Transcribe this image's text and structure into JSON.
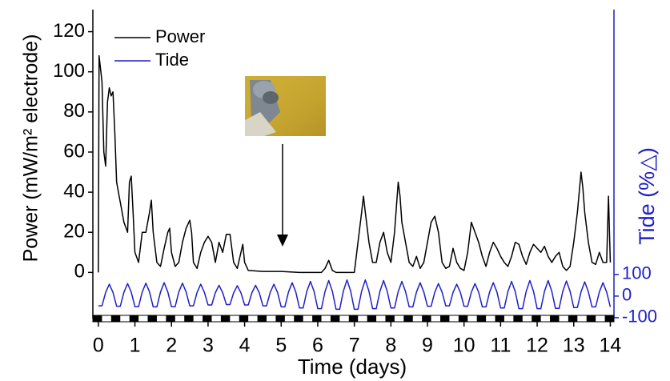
{
  "chart_data": {
    "type": "line",
    "xlabel": "Time (days)",
    "ylabel": "Power (mW/m² electrode)",
    "y2label": "Tide (%△)",
    "xlim": [
      -0.15,
      14.1
    ],
    "xticks": [
      0,
      1,
      2,
      3,
      4,
      5,
      6,
      7,
      8,
      9,
      10,
      11,
      12,
      13,
      14
    ],
    "ylim": [
      -23,
      131
    ],
    "yticks": [
      0,
      20,
      40,
      60,
      80,
      100,
      120
    ],
    "y2lim": [
      -104,
      1326
    ],
    "y2ticks": [
      100,
      0,
      -100
    ],
    "grid": false,
    "legend": "upper left",
    "series": [
      {
        "name": "Power",
        "color": "#000000",
        "x": [
          0,
          0.02,
          0.1,
          0.15,
          0.2,
          0.25,
          0.3,
          0.35,
          0.4,
          0.45,
          0.5,
          0.6,
          0.7,
          0.8,
          0.85,
          0.9,
          0.95,
          1.0,
          1.1,
          1.2,
          1.3,
          1.4,
          1.45,
          1.5,
          1.6,
          1.7,
          1.8,
          1.9,
          1.95,
          2.0,
          2.1,
          2.2,
          2.3,
          2.4,
          2.5,
          2.55,
          2.6,
          2.7,
          2.8,
          2.9,
          3.0,
          3.1,
          3.2,
          3.3,
          3.4,
          3.5,
          3.6,
          3.7,
          3.8,
          3.9,
          3.95,
          4.0,
          4.1,
          4.5,
          5.0,
          5.5,
          6.1,
          6.2,
          6.3,
          6.4,
          6.5,
          7.0,
          7.1,
          7.2,
          7.25,
          7.3,
          7.4,
          7.5,
          7.6,
          7.7,
          7.8,
          7.9,
          8.0,
          8.1,
          8.2,
          8.25,
          8.3,
          8.4,
          8.5,
          8.6,
          8.7,
          8.8,
          8.9,
          9.0,
          9.1,
          9.2,
          9.3,
          9.4,
          9.5,
          9.6,
          9.7,
          9.8,
          9.9,
          10.0,
          10.1,
          10.2,
          10.3,
          10.4,
          10.5,
          10.6,
          10.7,
          10.8,
          10.9,
          11.0,
          11.1,
          11.2,
          11.3,
          11.4,
          11.5,
          11.6,
          11.7,
          11.8,
          11.9,
          12.0,
          12.1,
          12.2,
          12.3,
          12.4,
          12.5,
          12.6,
          12.7,
          12.8,
          12.9,
          13.0,
          13.1,
          13.2,
          13.25,
          13.3,
          13.4,
          13.5,
          13.6,
          13.7,
          13.8,
          13.9,
          13.95,
          14.0
        ],
        "values": [
          0,
          108,
          95,
          60,
          53,
          85,
          92,
          88,
          90,
          70,
          45,
          35,
          25,
          20,
          45,
          48,
          30,
          10,
          5,
          20,
          20,
          30,
          36,
          20,
          5,
          3,
          12,
          20,
          22,
          10,
          3,
          5,
          15,
          22,
          26,
          20,
          5,
          2,
          10,
          15,
          18,
          15,
          5,
          15,
          10,
          19,
          19,
          5,
          2,
          10,
          14,
          5,
          1,
          0.5,
          0.5,
          0,
          0,
          2,
          6,
          1,
          0,
          0,
          15,
          30,
          38,
          30,
          15,
          5,
          5,
          15,
          20,
          10,
          5,
          20,
          45,
          38,
          25,
          15,
          5,
          3,
          8,
          2,
          5,
          15,
          25,
          28,
          20,
          5,
          2,
          3,
          12,
          5,
          2,
          1,
          10,
          25,
          20,
          15,
          8,
          3,
          10,
          15,
          12,
          8,
          5,
          3,
          8,
          15,
          14,
          8,
          4,
          10,
          14,
          12,
          10,
          13,
          8,
          5,
          8,
          10,
          3,
          1,
          3,
          15,
          30,
          50,
          42,
          30,
          15,
          5,
          4,
          10,
          5,
          5,
          38,
          5
        ]
      },
      {
        "name": "Tide",
        "color": "#1f1fc8",
        "axis": "y2",
        "x": [
          0,
          0.1,
          0.2,
          0.3,
          0.4,
          0.5,
          0.6,
          0.7,
          0.8,
          0.9,
          1.0,
          1.1,
          1.2,
          1.3,
          1.4,
          1.5,
          1.6,
          1.7,
          1.8,
          1.9,
          2.0,
          2.1,
          2.2,
          2.3,
          2.4,
          2.5,
          2.6,
          2.7,
          2.8,
          2.9,
          3.0,
          3.1,
          3.2,
          3.3,
          3.4,
          3.5,
          3.6,
          3.7,
          3.8,
          3.9,
          4.0,
          4.1,
          4.2,
          4.3,
          4.4,
          4.5,
          4.6,
          4.7,
          4.8,
          4.9,
          5.0,
          5.1,
          5.2,
          5.3,
          5.4,
          5.5,
          5.6,
          5.7,
          5.8,
          5.9,
          6.0,
          6.1,
          6.2,
          6.3,
          6.4,
          6.5,
          6.6,
          6.7,
          6.8,
          6.9,
          7.0,
          7.1,
          7.2,
          7.3,
          7.4,
          7.5,
          7.6,
          7.7,
          7.8,
          7.9,
          8.0,
          8.1,
          8.2,
          8.3,
          8.4,
          8.5,
          8.6,
          8.7,
          8.8,
          8.9,
          9.0,
          9.1,
          9.2,
          9.3,
          9.4,
          9.5,
          9.6,
          9.7,
          9.8,
          9.9,
          10.0,
          10.1,
          10.2,
          10.3,
          10.4,
          10.5,
          10.6,
          10.7,
          10.8,
          10.9,
          11.0,
          11.1,
          11.2,
          11.3,
          11.4,
          11.5,
          11.6,
          11.7,
          11.8,
          11.9,
          12.0,
          12.1,
          12.2,
          12.3,
          12.4,
          12.5,
          12.6,
          12.7,
          12.8,
          12.9,
          13.0,
          13.1,
          13.2,
          13.3,
          13.4,
          13.5,
          13.6,
          13.7,
          13.8,
          13.9,
          14.0
        ],
        "values": [
          -45,
          -45,
          17,
          55,
          17,
          -47,
          -47,
          18,
          58,
          18,
          -49,
          -49,
          19,
          60,
          19,
          -50,
          -50,
          19,
          62,
          19,
          -49,
          -49,
          19,
          60,
          19,
          -45,
          -45,
          17,
          55,
          17,
          -41,
          -41,
          16,
          50,
          16,
          -39,
          -39,
          15,
          48,
          15,
          -41,
          -41,
          16,
          50,
          16,
          -45,
          -45,
          17,
          55,
          17,
          -50,
          -50,
          19,
          62,
          19,
          -55,
          -55,
          21,
          68,
          21,
          -58,
          -58,
          22,
          72,
          22,
          -61,
          -61,
          23,
          75,
          23,
          -61,
          -61,
          23,
          75,
          23,
          -58,
          -58,
          22,
          72,
          22,
          -55,
          -55,
          21,
          68,
          21,
          -50,
          -50,
          19,
          62,
          19,
          -47,
          -47,
          18,
          58,
          18,
          -45,
          -45,
          17,
          55,
          17,
          -47,
          -47,
          18,
          58,
          18,
          -50,
          -50,
          19,
          62,
          19,
          -55,
          -55,
          21,
          68,
          21,
          -58,
          -58,
          22,
          72,
          22,
          -58,
          -58,
          22,
          72,
          22,
          -57,
          -57,
          22,
          70,
          22,
          -53,
          -53,
          20,
          66,
          20,
          -50,
          -50,
          19,
          62,
          19,
          -50
        ]
      }
    ]
  }
}
